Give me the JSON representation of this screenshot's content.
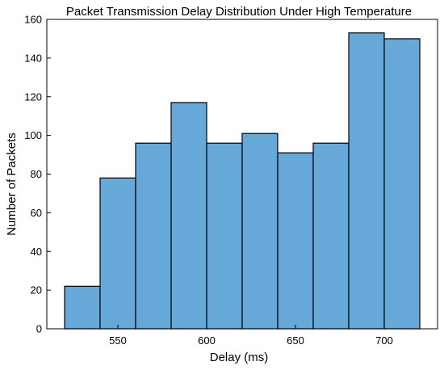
{
  "chart_data": {
    "type": "bar",
    "title": "Packet Transmission Delay Distribution Under High Temperature",
    "xlabel": "Delay (ms)",
    "ylabel": "Number of Packets",
    "bin_edges": [
      520,
      540,
      560,
      580,
      600,
      620,
      640,
      660,
      680,
      700,
      720
    ],
    "values": [
      22,
      78,
      96,
      117,
      96,
      101,
      91,
      96,
      153,
      150
    ],
    "xlim": [
      510,
      730
    ],
    "ylim": [
      0,
      160
    ],
    "xticks": [
      550,
      600,
      650,
      700
    ],
    "yticks": [
      0,
      20,
      40,
      60,
      80,
      100,
      120,
      140,
      160
    ],
    "bar_color": "#66a9d9",
    "grid": false,
    "legend": "none"
  }
}
